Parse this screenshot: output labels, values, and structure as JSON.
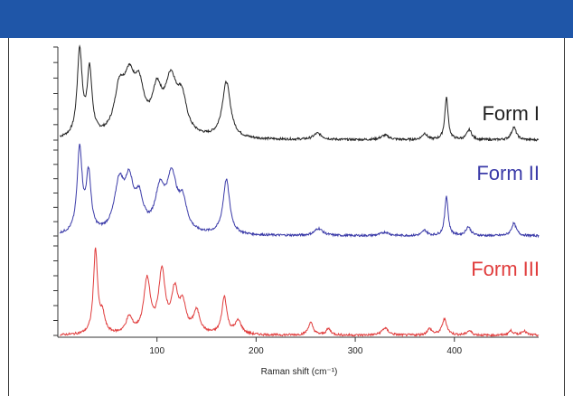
{
  "chart_data": {
    "type": "line",
    "xlabel": "Raman shift (cm⁻¹)",
    "xlim": [
      0,
      485
    ],
    "x_ticks": [
      100,
      200,
      300,
      400
    ],
    "grid": false,
    "series": [
      {
        "name": "Form I",
        "color": "#222222",
        "peaks": [
          {
            "x": 22,
            "h": 0.95,
            "w": 3
          },
          {
            "x": 32,
            "h": 0.72,
            "w": 3
          },
          {
            "x": 62,
            "h": 0.45,
            "w": 6
          },
          {
            "x": 72,
            "h": 0.55,
            "w": 7
          },
          {
            "x": 82,
            "h": 0.45,
            "w": 6
          },
          {
            "x": 100,
            "h": 0.45,
            "w": 6
          },
          {
            "x": 114,
            "h": 0.58,
            "w": 7
          },
          {
            "x": 125,
            "h": 0.38,
            "w": 6
          },
          {
            "x": 170,
            "h": 0.62,
            "w": 5
          },
          {
            "x": 262,
            "h": 0.07,
            "w": 5
          },
          {
            "x": 330,
            "h": 0.05,
            "w": 5
          },
          {
            "x": 370,
            "h": 0.07,
            "w": 3
          },
          {
            "x": 392,
            "h": 0.47,
            "w": 2
          },
          {
            "x": 415,
            "h": 0.11,
            "w": 3
          },
          {
            "x": 460,
            "h": 0.14,
            "w": 3
          }
        ]
      },
      {
        "name": "Form II",
        "color": "#3a3aa8",
        "peaks": [
          {
            "x": 22,
            "h": 0.95,
            "w": 3
          },
          {
            "x": 31,
            "h": 0.65,
            "w": 3
          },
          {
            "x": 62,
            "h": 0.55,
            "w": 6
          },
          {
            "x": 72,
            "h": 0.5,
            "w": 5
          },
          {
            "x": 82,
            "h": 0.35,
            "w": 5
          },
          {
            "x": 103,
            "h": 0.45,
            "w": 6
          },
          {
            "x": 115,
            "h": 0.6,
            "w": 6
          },
          {
            "x": 126,
            "h": 0.32,
            "w": 5
          },
          {
            "x": 170,
            "h": 0.62,
            "w": 4
          },
          {
            "x": 263,
            "h": 0.08,
            "w": 5
          },
          {
            "x": 330,
            "h": 0.04,
            "w": 5
          },
          {
            "x": 370,
            "h": 0.06,
            "w": 3
          },
          {
            "x": 392,
            "h": 0.45,
            "w": 2
          },
          {
            "x": 414,
            "h": 0.1,
            "w": 3
          },
          {
            "x": 460,
            "h": 0.14,
            "w": 3
          }
        ]
      },
      {
        "name": "Form III",
        "color": "#e03c3c",
        "peaks": [
          {
            "x": 38,
            "h": 0.95,
            "w": 2.5
          },
          {
            "x": 45,
            "h": 0.2,
            "w": 3
          },
          {
            "x": 72,
            "h": 0.18,
            "w": 4
          },
          {
            "x": 90,
            "h": 0.6,
            "w": 4
          },
          {
            "x": 105,
            "h": 0.68,
            "w": 4
          },
          {
            "x": 118,
            "h": 0.45,
            "w": 4
          },
          {
            "x": 126,
            "h": 0.3,
            "w": 4
          },
          {
            "x": 140,
            "h": 0.25,
            "w": 4
          },
          {
            "x": 168,
            "h": 0.42,
            "w": 3
          },
          {
            "x": 182,
            "h": 0.15,
            "w": 4
          },
          {
            "x": 255,
            "h": 0.14,
            "w": 3
          },
          {
            "x": 273,
            "h": 0.07,
            "w": 3
          },
          {
            "x": 330,
            "h": 0.08,
            "w": 4
          },
          {
            "x": 375,
            "h": 0.07,
            "w": 3
          },
          {
            "x": 390,
            "h": 0.18,
            "w": 3
          },
          {
            "x": 415,
            "h": 0.05,
            "w": 3
          },
          {
            "x": 457,
            "h": 0.05,
            "w": 3
          },
          {
            "x": 470,
            "h": 0.05,
            "w": 3
          }
        ]
      }
    ]
  },
  "colors": {
    "header_bar": "#1f56a8"
  }
}
